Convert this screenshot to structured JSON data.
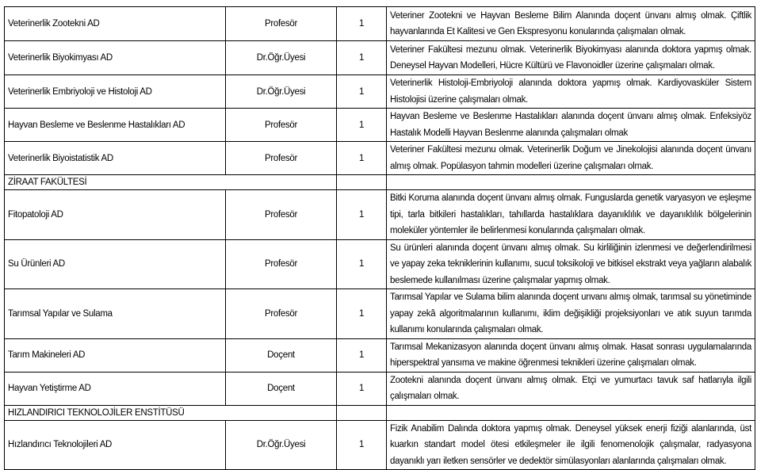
{
  "rows": [
    {
      "type": "item",
      "department": "Veterinerlik Zootekni AD",
      "title": "Profesör",
      "count": "1",
      "requirements": "Veteriner Zootekni ve Hayvan Besleme Bilim Alanında doçent ünvanı almış olmak. Çiftlik hayvanlarında Et Kalitesi ve Gen Ekspresyonu konularında çalışmaları olmak."
    },
    {
      "type": "item",
      "department": "Veterinerlik Biyokimyası AD",
      "title": "Dr.Öğr.Üyesi",
      "count": "1",
      "requirements": "Veteriner Fakültesi mezunu olmak. Veterinerlik Biyokimyası alanında doktora yapmış olmak. Deneysel Hayvan Modelleri, Hücre Kültürü ve Flavonoidler üzerine çalışmaları olmak."
    },
    {
      "type": "item",
      "department": "Veterinerlik Embriyoloji ve Histoloji AD",
      "title": "Dr.Öğr.Üyesi",
      "count": "1",
      "requirements": "Veterinerlik Histoloji-Embriyoloji alanında doktora yapmış olmak. Kardiyovasküler Sistem Histolojisi üzerine çalışmaları olmak."
    },
    {
      "type": "item",
      "department": "Hayvan Besleme ve Beslenme Hastalıkları AD",
      "title": "Profesör",
      "count": "1",
      "requirements": "Hayvan Besleme ve Beslenme Hastalıkları alanında doçent ünvanı almış olmak. Enfeksiyöz Hastalık Modelli Hayvan Beslenme alanında çalışmaları olmak"
    },
    {
      "type": "item",
      "department": "Veterinerlik Biyoistatistik AD",
      "title": "Profesör",
      "count": "1",
      "requirements": "Veteriner Fakültesi mezunu olmak. Veterinerlik Doğum ve Jinekolojisi alanında doçent ünvanı almış olmak. Popülasyon tahmin modelleri üzerine çalışmaları olmak."
    },
    {
      "type": "section",
      "department": "ZİRAAT FAKÜLTESİ"
    },
    {
      "type": "item",
      "department": "Fitopatoloji  AD",
      "title": "Profesör",
      "count": "1",
      "requirements": "Bitki Koruma alanında doçent ünvanı almış olmak. Funguslarda genetik varyasyon ve eşleşme tipi, tarla bitkileri hastalıkları, tahıllarda hastalıklara dayanıklılık ve dayanıklılık bölgelerinin moleküler yöntemler ile belirlenmesi konularında çalışmaları olmak."
    },
    {
      "type": "item",
      "department": "Su Ürünleri AD",
      "title": "Profesör",
      "count": "1",
      "requirements": "Su ürünleri alanında doçent ünvanı almış olmak. Su kirliliğinin izlenmesi ve değerlendirilmesi ve yapay zeka tekniklerinin kullanımı, sucul toksikoloji ve bitkisel ekstrakt veya yağların alabalık beslemede kullanılması üzerine çalışmalar yapmış olmak."
    },
    {
      "type": "item",
      "department": "Tarımsal Yapılar ve Sulama",
      "title": "Profesör",
      "count": "1",
      "requirements": "Tarımsal Yapılar ve Sulama bilim alanında doçent unvanı almış olmak, tarımsal su yönetiminde yapay zekâ algoritmalarının kullanımı, iklim değişikliği projeksiyonları ve atık suyun tarımda kullanımı konularında çalışmaları olmak."
    },
    {
      "type": "item",
      "department": "Tarım Makineleri AD",
      "title": "Doçent",
      "count": "1",
      "requirements": "Tarımsal Mekanizasyon alanında doçent ünvanı almış olmak. Hasat sonrası uygulamalarında hiperspektral yansıma ve makine öğrenmesi teknikleri üzerine çalışmaları olmak."
    },
    {
      "type": "item",
      "department": "Hayvan Yetiştirme AD",
      "title": "Doçent",
      "count": "1",
      "requirements": "Zootekni alanında doçent ünvanı almış olmak. Etçi ve yumurtacı tavuk saf hatlarıyla ilgili çalışmaları olmak."
    },
    {
      "type": "section",
      "department": "HIZLANDIRICI TEKNOLOJİLER ENSTİTÜSÜ"
    },
    {
      "type": "item",
      "department": "Hızlandırıcı Teknolojileri AD",
      "title": "Dr.Öğr.Üyesi",
      "count": "1",
      "requirements": "Fizik Anabilim Dalında doktora yapmış olmak. Deneysel yüksek enerji fiziği alanlarında, üst kuarkın standart model ötesi etkileşmeler ile ilgili fenomenolojik çalışmalar, radyasyona dayanıklı yarı iletken sensörler ve dedektör simülasyonları alanlarında çalışmaları olmak."
    }
  ]
}
